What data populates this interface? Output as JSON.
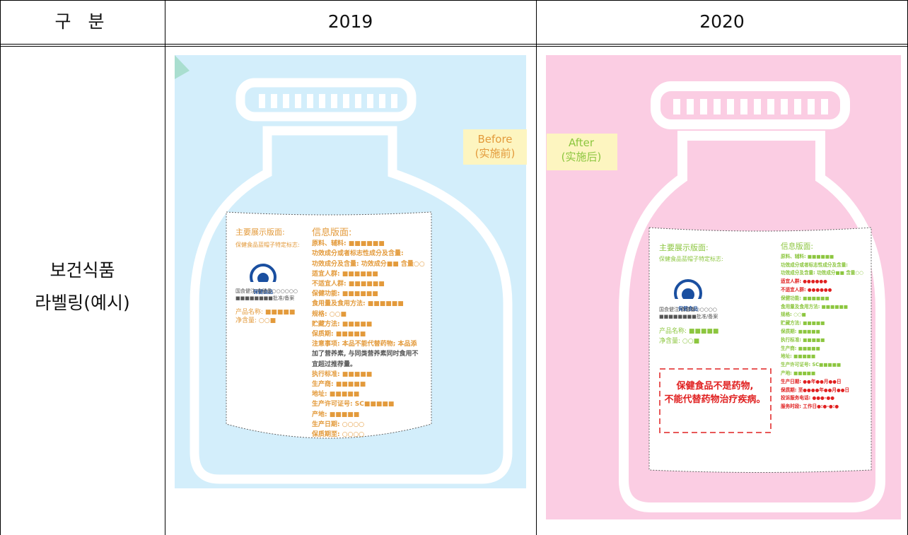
{
  "table": {
    "header": [
      "구 분",
      "2019",
      "2020"
    ],
    "row_label": [
      "보건식품",
      "라벨링(예시)"
    ]
  },
  "panels": [
    {
      "tag": [
        "Before",
        "(实施前)"
      ],
      "logo_text": "保健食品",
      "left_lines": [
        {
          "text": "主要展示版面:",
          "color": "#e39a3b"
        },
        {
          "text": "保健食品蓝帽子特定标志:",
          "color": "#e39a3b"
        },
        {
          "text": "国食健注/食健备○○○○○○",
          "color": "#555555"
        },
        {
          "text": "■■■■■■■■批准/备案",
          "color": "#555555"
        },
        {
          "text": "产品名称: ■■■■■",
          "color": "#e39a3b"
        },
        {
          "text": "净含量: ○○■",
          "color": "#e39a3b"
        }
      ],
      "right_lines": [
        {
          "text": "信息版面:",
          "color": "#e39a3b"
        },
        {
          "text": "原料、辅料: ■■■■■■",
          "color": "#e39a3b"
        },
        {
          "text": "功效成分或者标志性成分及含量:",
          "color": "#e39a3b"
        },
        {
          "text": "功效成分及含量: 功效成分■■ 含量○○",
          "color": "#e39a3b"
        },
        {
          "text": "适宜人群: ■■■■■■",
          "color": "#e39a3b"
        },
        {
          "text": "不适宜人群: ■■■■■■",
          "color": "#e39a3b"
        },
        {
          "text": "保健功能: ■■■■■■",
          "color": "#e39a3b"
        },
        {
          "text": "食用量及食用方法: ■■■■■■",
          "color": "#e39a3b"
        },
        {
          "text": "规格: ○○■",
          "color": "#e39a3b"
        },
        {
          "text": "贮藏方法: ■■■■■",
          "color": "#e39a3b"
        },
        {
          "text": "保质期: ■■■■■",
          "color": "#e39a3b"
        },
        {
          "text": "注意事项: 本品不能代替药物; 本品添",
          "color": "#e39a3b"
        },
        {
          "text": "加了营养素, 与同类营养素同时食用不",
          "color": "#555555"
        },
        {
          "text": "宜超过推荐量。",
          "color": "#555555"
        },
        {
          "text": "执行标准: ■■■■■",
          "color": "#e39a3b"
        },
        {
          "text": "生产商: ■■■■■",
          "color": "#e39a3b"
        },
        {
          "text": "地址: ■■■■■",
          "color": "#e39a3b"
        },
        {
          "text": "生产许可证号: SC■■■■■",
          "color": "#e39a3b"
        },
        {
          "text": "产地: ■■■■■",
          "color": "#e39a3b"
        },
        {
          "text": "生产日期: ○○○○",
          "color": "#e39a3b"
        },
        {
          "text": "保质期至: ○○○○",
          "color": "#e39a3b"
        }
      ]
    },
    {
      "tag": [
        "After",
        "(实施后)"
      ],
      "logo_text": "保健食品",
      "left_lines": [
        {
          "text": "主要展示版面:",
          "color": "#8cc63f"
        },
        {
          "text": "保健食品蓝帽子特定标志:",
          "color": "#8cc63f"
        },
        {
          "text": "国食健注/食健备○○○○○",
          "color": "#555555"
        },
        {
          "text": "■■■■■■■■批准/备案",
          "color": "#555555"
        },
        {
          "text": "产品名称: ■■■■■",
          "color": "#8cc63f"
        },
        {
          "text": "净含量: ○○■",
          "color": "#8cc63f"
        }
      ],
      "warning": [
        "保健食品不是药物,",
        "不能代替药物治疗疾病。"
      ],
      "right_lines": [
        {
          "text": "信息版面:",
          "color": "#8cc63f"
        },
        {
          "text": "原料、辅料: ■■■■■■",
          "color": "#8cc63f"
        },
        {
          "text": "功效成分或者标志性成分及含量:",
          "color": "#8cc63f"
        },
        {
          "text": "功效成分及含量: 功效成分■■ 含量○○",
          "color": "#8cc63f"
        },
        {
          "text": "适宜人群: ●●●●●●",
          "color": "#e02020"
        },
        {
          "text": "不适宜人群: ●●●●●●",
          "color": "#e02020"
        },
        {
          "text": "保健功能: ■■■■■■",
          "color": "#8cc63f"
        },
        {
          "text": "食用量及食用方法: ■■■■■■",
          "color": "#8cc63f"
        },
        {
          "text": "规格: ○○■",
          "color": "#8cc63f"
        },
        {
          "text": "贮藏方法: ■■■■■",
          "color": "#8cc63f"
        },
        {
          "text": "保质期: ■■■■■",
          "color": "#8cc63f"
        },
        {
          "text": "执行标准: ■■■■■",
          "color": "#8cc63f"
        },
        {
          "text": "生产商: ■■■■■",
          "color": "#8cc63f"
        },
        {
          "text": "地址: ■■■■■",
          "color": "#8cc63f"
        },
        {
          "text": "生产许可证号: SC■■■■■",
          "color": "#8cc63f"
        },
        {
          "text": "产地: ■■■■■",
          "color": "#8cc63f"
        },
        {
          "text": "生产日期: ●●年●●月●●日",
          "color": "#e02020"
        },
        {
          "text": "保质期: 至●●●●年●●月●●日",
          "color": "#e02020"
        },
        {
          "text": "投诉服务电话: ●●●-●●",
          "color": "#e02020"
        },
        {
          "text": "服务时段: 工作日●:●-●:●",
          "color": "#e02020"
        }
      ]
    }
  ]
}
